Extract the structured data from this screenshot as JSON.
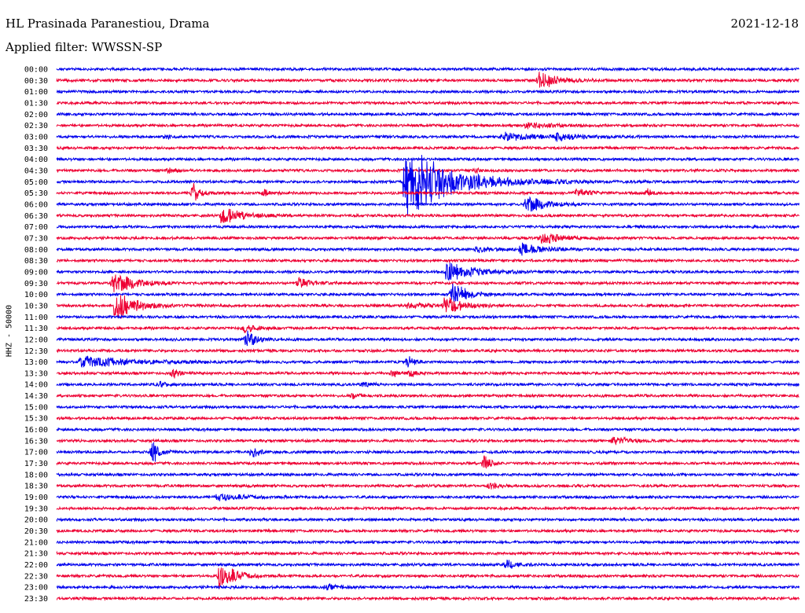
{
  "header": {
    "station": "HL Prasinada Paranestiou, Drama",
    "date": "2021-12-18",
    "filter": "Applied filter: WWSSN-SP"
  },
  "channel_label": "HHZ - 50000",
  "colors": {
    "blue": "#0000ee",
    "red": "#ee0033",
    "background": "#ffffff"
  },
  "chart_data": {
    "type": "line",
    "title": "HL Prasinada Paranestiou, Drama",
    "ylabel": "HHZ - 50000",
    "y_tick_labels": [
      "00:00",
      "00:30",
      "01:00",
      "01:30",
      "02:00",
      "02:30",
      "03:00",
      "03:30",
      "04:00",
      "04:30",
      "05:00",
      "05:30",
      "06:00",
      "06:30",
      "07:00",
      "07:30",
      "08:00",
      "08:30",
      "09:00",
      "09:30",
      "10:00",
      "10:30",
      "11:00",
      "11:30",
      "12:00",
      "12:30",
      "13:00",
      "13:30",
      "14:00",
      "14:30",
      "15:00",
      "15:30",
      "16:00",
      "16:30",
      "17:00",
      "17:30",
      "18:00",
      "18:30",
      "19:00",
      "19:30",
      "20:00",
      "20:30",
      "21:00",
      "21:30",
      "22:00",
      "22:30",
      "23:00",
      "23:30"
    ],
    "trace_colors": [
      "#0000ee",
      "#ee0033"
    ],
    "trace_duration_minutes": 30,
    "events": [
      {
        "trace": "00:30",
        "minute": 19.5,
        "amplitude": 0.9,
        "duration": 1.5
      },
      {
        "trace": "02:30",
        "minute": 19.0,
        "amplitude": 0.35,
        "duration": 1.5
      },
      {
        "trace": "03:00",
        "minute": 18.0,
        "amplitude": 0.4,
        "duration": 3.0
      },
      {
        "trace": "03:00",
        "minute": 20.2,
        "amplitude": 0.4,
        "duration": 1.5
      },
      {
        "trace": "03:00",
        "minute": 4.5,
        "amplitude": 0.2,
        "duration": 0.3
      },
      {
        "trace": "04:30",
        "minute": 4.5,
        "amplitude": 0.3,
        "duration": 0.7
      },
      {
        "trace": "04:30",
        "minute": 17.0,
        "amplitude": 0.25,
        "duration": 0.3
      },
      {
        "trace": "05:00",
        "minute": 14.1,
        "amplitude": 3.5,
        "duration": 4.0
      },
      {
        "trace": "05:30",
        "minute": 5.5,
        "amplitude": 1.1,
        "duration": 0.6
      },
      {
        "trace": "05:30",
        "minute": 8.4,
        "amplitude": 0.3,
        "duration": 0.8
      },
      {
        "trace": "05:30",
        "minute": 21.0,
        "amplitude": 0.5,
        "duration": 1.0
      },
      {
        "trace": "05:30",
        "minute": 23.9,
        "amplitude": 0.6,
        "duration": 0.3
      },
      {
        "trace": "06:00",
        "minute": 19.0,
        "amplitude": 0.9,
        "duration": 1.5
      },
      {
        "trace": "06:30",
        "minute": 6.7,
        "amplitude": 1.1,
        "duration": 1.5
      },
      {
        "trace": "07:30",
        "minute": 19.6,
        "amplitude": 0.7,
        "duration": 1.5
      },
      {
        "trace": "08:00",
        "minute": 17.0,
        "amplitude": 0.4,
        "duration": 1.0
      },
      {
        "trace": "08:00",
        "minute": 18.8,
        "amplitude": 0.8,
        "duration": 1.5
      },
      {
        "trace": "09:00",
        "minute": 15.8,
        "amplitude": 1.1,
        "duration": 2.0
      },
      {
        "trace": "09:30",
        "minute": 2.3,
        "amplitude": 1.1,
        "duration": 1.8
      },
      {
        "trace": "09:30",
        "minute": 9.8,
        "amplitude": 0.5,
        "duration": 1.0
      },
      {
        "trace": "10:00",
        "minute": 16.0,
        "amplitude": 1.3,
        "duration": 1.2
      },
      {
        "trace": "10:30",
        "minute": 2.4,
        "amplitude": 1.7,
        "duration": 1.5
      },
      {
        "trace": "10:30",
        "minute": 15.7,
        "amplitude": 0.9,
        "duration": 1.5
      },
      {
        "trace": "10:30",
        "minute": 14.2,
        "amplitude": 0.3,
        "duration": 1.5
      },
      {
        "trace": "11:30",
        "minute": 7.6,
        "amplitude": 0.5,
        "duration": 1.0
      },
      {
        "trace": "12:00",
        "minute": 7.7,
        "amplitude": 1.0,
        "duration": 0.8
      },
      {
        "trace": "13:00",
        "minute": 1.0,
        "amplitude": 0.6,
        "duration": 4.5
      },
      {
        "trace": "13:00",
        "minute": 14.2,
        "amplitude": 0.6,
        "duration": 0.5
      },
      {
        "trace": "13:30",
        "minute": 4.7,
        "amplitude": 0.6,
        "duration": 0.5
      },
      {
        "trace": "13:30",
        "minute": 13.6,
        "amplitude": 0.5,
        "duration": 0.3
      },
      {
        "trace": "13:30",
        "minute": 14.3,
        "amplitude": 0.5,
        "duration": 0.5
      },
      {
        "trace": "14:00",
        "minute": 4.2,
        "amplitude": 0.35,
        "duration": 0.4
      },
      {
        "trace": "14:00",
        "minute": 12.4,
        "amplitude": 0.3,
        "duration": 0.6
      },
      {
        "trace": "14:30",
        "minute": 12.0,
        "amplitude": 0.3,
        "duration": 0.5
      },
      {
        "trace": "17:00",
        "minute": 3.9,
        "amplitude": 1.3,
        "duration": 0.5
      },
      {
        "trace": "17:00",
        "minute": 7.9,
        "amplitude": 0.5,
        "duration": 0.8
      },
      {
        "trace": "17:30",
        "minute": 17.3,
        "amplitude": 0.9,
        "duration": 0.5
      },
      {
        "trace": "16:30",
        "minute": 22.5,
        "amplitude": 0.4,
        "duration": 1.5
      },
      {
        "trace": "18:30",
        "minute": 17.5,
        "amplitude": 0.3,
        "duration": 1.0
      },
      {
        "trace": "19:00",
        "minute": 6.5,
        "amplitude": 0.4,
        "duration": 2.0
      },
      {
        "trace": "22:00",
        "minute": 18.2,
        "amplitude": 0.6,
        "duration": 0.8
      },
      {
        "trace": "22:30",
        "minute": 6.6,
        "amplitude": 1.6,
        "duration": 1.2
      },
      {
        "trace": "23:00",
        "minute": 10.9,
        "amplitude": 0.35,
        "duration": 0.8
      }
    ]
  }
}
